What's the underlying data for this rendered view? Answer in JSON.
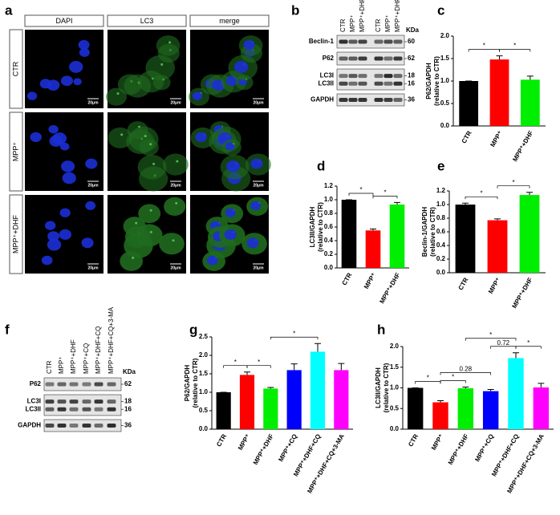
{
  "panel_labels": [
    "a",
    "b",
    "c",
    "d",
    "e",
    "f",
    "g",
    "h"
  ],
  "microscopy": {
    "columns": [
      "DAPI",
      "LC3",
      "merge"
    ],
    "rows": [
      "CTR",
      "MPP⁺",
      "MPP⁺+DHF"
    ],
    "scale_bar": "20μm"
  },
  "blot_b": {
    "lanes": [
      "CTR",
      "MPP⁺",
      "MPP⁺+DHF",
      "CTR",
      "MPP⁺",
      "MPP⁺+DHF"
    ],
    "kda_label": "KDa",
    "bands": [
      {
        "name": "Beclin-1",
        "kda": 60
      },
      {
        "name": "P62",
        "kda": 62
      },
      {
        "name": "LC3I",
        "kda": 18
      },
      {
        "name": "LC3II",
        "kda": 16
      },
      {
        "name": "GAPDH",
        "kda": 36
      }
    ]
  },
  "blot_f": {
    "lanes": [
      "CTR",
      "MPP⁺",
      "MPP⁺+DHF",
      "MPP⁺+CQ",
      "MPP⁺+DHF+CQ",
      "MPP⁺+DHF+CQ+3-MA"
    ],
    "kda_label": "KDa",
    "bands": [
      {
        "name": "P62",
        "kda": 62
      },
      {
        "name": "LC3I",
        "kda": 18
      },
      {
        "name": "LC3II",
        "kda": 16
      },
      {
        "name": "GAPDH",
        "kda": 36
      }
    ]
  },
  "chart_data": [
    {
      "type": "bar",
      "ylabel": [
        "P62/GAPDH",
        "(relative to CTR)"
      ],
      "categories": [
        "CTR",
        "MPP⁺",
        "MPP⁺+DHF"
      ],
      "colors": [
        "#000000",
        "#ff0000",
        "#00ee00"
      ],
      "values": [
        1.0,
        1.48,
        1.03
      ],
      "errors": [
        0,
        0.08,
        0.08
      ],
      "ylim": [
        0,
        2.0
      ],
      "yticks": [
        {
          "value": 0,
          "label": "0.0"
        },
        {
          "value": 0.5,
          "label": "0.5"
        },
        {
          "value": 1,
          "label": "1.0"
        },
        {
          "value": 1.5,
          "label": "1.5"
        },
        {
          "value": 2,
          "label": "2.0"
        }
      ],
      "brackets": [
        {
          "pair": [
            0,
            1
          ],
          "label": "*"
        },
        {
          "pair": [
            1,
            2
          ],
          "label": "*"
        }
      ]
    },
    {
      "type": "bar",
      "ylabel": [
        "LC3II/GAPDH",
        "(relative to CTR)"
      ],
      "categories": [
        "CTR",
        "MPP⁺",
        "MPP⁺+DHF"
      ],
      "colors": [
        "#000000",
        "#ff0000",
        "#00ee00"
      ],
      "values": [
        1.0,
        0.55,
        0.93
      ],
      "errors": [
        0,
        0.02,
        0.03
      ],
      "ylim": [
        0,
        1.2
      ],
      "yticks": [
        {
          "value": 0,
          "label": "0.0"
        },
        0.2,
        0.4,
        0.6,
        0.8,
        {
          "value": 1,
          "label": "1.0"
        },
        1.2
      ],
      "brackets": [
        {
          "pair": [
            0,
            1
          ],
          "label": "*"
        },
        {
          "pair": [
            1,
            2
          ],
          "label": "*"
        }
      ]
    },
    {
      "type": "bar",
      "ylabel": [
        "Beclin-1/GAPDH",
        "(relative to CTR)"
      ],
      "categories": [
        "CTR",
        "MPP⁺",
        "MPP⁺+DHF"
      ],
      "colors": [
        "#000000",
        "#ff0000",
        "#00ee00"
      ],
      "values": [
        1.0,
        0.77,
        1.14
      ],
      "errors": [
        0.02,
        0.02,
        0.04
      ],
      "ylim": [
        0,
        1.2
      ],
      "yticks": [
        {
          "value": 0,
          "label": "0.0"
        },
        0.2,
        0.4,
        0.6,
        0.8,
        {
          "value": 1,
          "label": "1.0"
        },
        1.2
      ],
      "brackets": [
        {
          "pair": [
            0,
            1
          ],
          "label": "*"
        },
        {
          "pair": [
            1,
            2
          ],
          "label": "*"
        }
      ]
    },
    {
      "type": "bar",
      "ylabel": [
        "P62/GAPDH",
        "(relative to CTR)"
      ],
      "categories": [
        "CTR",
        "MPP⁺",
        "MPP⁺+DHF",
        "MPP⁺+CQ",
        "MPP⁺+DHF+CQ",
        "MPP⁺+DHF+CQ+3-MA"
      ],
      "colors": [
        "#000000",
        "#ff0000",
        "#00ee00",
        "#0000ff",
        "#00ffff",
        "#ff00ff"
      ],
      "values": [
        1.0,
        1.47,
        1.1,
        1.6,
        2.1,
        1.6
      ],
      "errors": [
        0,
        0.08,
        0.03,
        0.17,
        0.22,
        0.18
      ],
      "ylim": [
        0,
        2.5
      ],
      "yticks": [
        {
          "value": 0,
          "label": "0.0"
        },
        0.5,
        {
          "value": 1,
          "label": "1.0"
        },
        1.5,
        {
          "value": 2,
          "label": "2.0"
        },
        2.5
      ],
      "brackets": [
        {
          "pair": [
            0,
            1
          ],
          "label": "*"
        },
        {
          "pair": [
            1,
            2
          ],
          "label": "*"
        },
        {
          "pair": [
            2,
            4
          ],
          "label": "*"
        }
      ]
    },
    {
      "type": "bar",
      "ylabel": [
        "LC3II/GAPDH",
        "(relative to CTR)"
      ],
      "categories": [
        "CTR",
        "MPP⁺",
        "MPP⁺+DHF",
        "MPP⁺+CQ",
        "MPP⁺+DHF+CQ",
        "MPP⁺+DHF+CQ+3-MA"
      ],
      "colors": [
        "#000000",
        "#ff0000",
        "#00ee00",
        "#0000ff",
        "#00ffff",
        "#ff00ff"
      ],
      "values": [
        1.0,
        0.65,
        0.99,
        0.92,
        1.72,
        1.01
      ],
      "errors": [
        0,
        0.04,
        0.03,
        0.04,
        0.13,
        0.1
      ],
      "ylim": [
        0,
        2.0
      ],
      "yticks": [
        {
          "value": 0,
          "label": "0.0"
        },
        0.5,
        {
          "value": 1,
          "label": "1.0"
        },
        1.5,
        {
          "value": 2,
          "label": "2.0"
        }
      ],
      "brackets": [
        {
          "pair": [
            0,
            1
          ],
          "label": "*"
        },
        {
          "pair": [
            1,
            2
          ],
          "label": "*"
        },
        {
          "pair": [
            1,
            3
          ],
          "label": "0.28"
        },
        {
          "pair": [
            3,
            4
          ],
          "label": "0.72"
        },
        {
          "pair": [
            2,
            4
          ],
          "label": "*"
        },
        {
          "pair": [
            4,
            5
          ],
          "label": "*"
        }
      ]
    }
  ]
}
